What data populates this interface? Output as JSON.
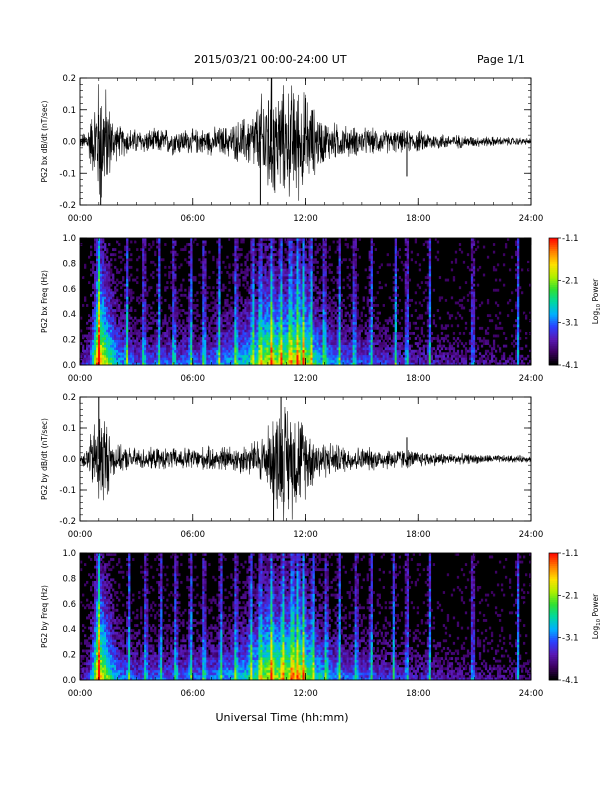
{
  "header": {
    "title": "2015/03/21  00:00-24:00 UT",
    "page": "Page 1/1"
  },
  "footer": {
    "xlabel": "Universal Time (hh:mm)"
  },
  "colors": {
    "trace": "#000000",
    "axis": "#000000",
    "background": "#ffffff",
    "colormap": [
      "#000000",
      "#3c0060",
      "#5a18b4",
      "#2a40ff",
      "#00b0ff",
      "#00d8a0",
      "#30e030",
      "#b0f000",
      "#ffe000",
      "#ff8000",
      "#ff1000"
    ]
  },
  "chart_data": [
    {
      "type": "line",
      "title": "",
      "ylabel": "PG2 bx dB/dt (nT/sec)",
      "xlabel": "",
      "xlim": [
        "00:00",
        "24:00"
      ],
      "ylim": [
        -0.2,
        0.2
      ],
      "xticks": [
        "00:00",
        "06:00",
        "12:00",
        "18:00",
        "24:00"
      ],
      "yticks": [
        "0.2",
        "0.1",
        "0.0",
        "-0.1",
        "-0.2"
      ],
      "envelope": {
        "x_hours": [
          0,
          0.3,
          0.7,
          1.0,
          1.3,
          1.7,
          2.0,
          3.0,
          4.0,
          5.0,
          6.0,
          7.0,
          8.0,
          9.0,
          9.5,
          10.0,
          10.5,
          11.0,
          11.5,
          12.0,
          12.5,
          13.0,
          14.0,
          15.0,
          16.0,
          17.0,
          18.0,
          19.0,
          20.0,
          21.0,
          22.0,
          23.0,
          24.0
        ],
        "amplitude": [
          0.02,
          0.04,
          0.12,
          0.25,
          0.22,
          0.1,
          0.06,
          0.045,
          0.045,
          0.05,
          0.045,
          0.05,
          0.06,
          0.1,
          0.14,
          0.25,
          0.2,
          0.2,
          0.22,
          0.18,
          0.12,
          0.08,
          0.06,
          0.05,
          0.045,
          0.04,
          0.04,
          0.03,
          0.025,
          0.02,
          0.018,
          0.015,
          0.012
        ]
      },
      "spikes": [
        {
          "hour": 1.1,
          "value": -0.22
        },
        {
          "hour": 9.6,
          "value": -0.2
        },
        {
          "hour": 10.2,
          "value": 0.21
        },
        {
          "hour": 17.4,
          "value": -0.11
        }
      ]
    },
    {
      "type": "heatmap",
      "title": "",
      "ylabel": "PG2 bx Freq (Hz)",
      "xlabel": "",
      "xlim": [
        "00:00",
        "24:00"
      ],
      "ylim": [
        0.0,
        1.0
      ],
      "xticks": [
        "00:00",
        "06:00",
        "12:00",
        "18:00",
        "24:00"
      ],
      "yticks": [
        "1.0",
        "0.8",
        "0.6",
        "0.4",
        "0.2",
        "0.0"
      ],
      "colorbar": {
        "label": "Log10 Power",
        "label_prefix": "Log",
        "label_sub": "10",
        "label_suffix": " Power",
        "range": [
          -4.1,
          -1.1
        ],
        "ticks": [
          "-1.1",
          "-2.1",
          "-3.1",
          "-4.1"
        ]
      },
      "activity": {
        "x_hours": [
          0,
          0.5,
          0.8,
          1.0,
          1.3,
          2.0,
          3.0,
          5.0,
          7.0,
          8.5,
          9.5,
          10.0,
          10.5,
          11.0,
          11.5,
          12.0,
          12.5,
          13.0,
          14.0,
          16.0,
          18.0,
          20.0,
          22.0,
          24.0
        ],
        "level": [
          0.15,
          0.3,
          0.7,
          1.0,
          0.8,
          0.45,
          0.3,
          0.32,
          0.35,
          0.45,
          0.6,
          0.8,
          0.7,
          0.7,
          0.8,
          0.7,
          0.55,
          0.45,
          0.35,
          0.28,
          0.22,
          0.18,
          0.15,
          0.1
        ]
      },
      "bright_lines_hours": [
        1.0,
        2.5,
        3.4,
        4.2,
        5.0,
        5.9,
        6.6,
        7.4,
        8.3,
        9.2,
        9.6,
        10.2,
        10.7,
        11.2,
        11.6,
        11.9,
        12.3,
        13.0,
        13.8,
        14.6,
        15.5,
        16.8,
        17.4,
        18.6,
        20.9,
        23.3
      ]
    },
    {
      "type": "line",
      "title": "",
      "ylabel": "PG2 by dB/dt (nT/sec)",
      "xlabel": "",
      "xlim": [
        "00:00",
        "24:00"
      ],
      "ylim": [
        -0.2,
        0.2
      ],
      "xticks": [
        "00:00",
        "06:00",
        "12:00",
        "18:00",
        "24:00"
      ],
      "yticks": [
        "0.2",
        "0.1",
        "0.0",
        "-0.1",
        "-0.2"
      ],
      "envelope": {
        "x_hours": [
          0,
          0.3,
          0.7,
          1.0,
          1.3,
          1.7,
          2.0,
          3.0,
          4.0,
          5.0,
          6.0,
          7.0,
          8.0,
          9.0,
          9.5,
          10.0,
          10.5,
          11.0,
          11.5,
          12.0,
          12.5,
          13.0,
          14.0,
          15.0,
          16.0,
          17.0,
          18.0,
          19.0,
          20.0,
          21.0,
          22.0,
          23.0,
          24.0
        ],
        "amplitude": [
          0.02,
          0.04,
          0.12,
          0.2,
          0.18,
          0.08,
          0.05,
          0.04,
          0.04,
          0.04,
          0.045,
          0.045,
          0.05,
          0.06,
          0.08,
          0.12,
          0.2,
          0.22,
          0.2,
          0.14,
          0.09,
          0.07,
          0.05,
          0.045,
          0.04,
          0.04,
          0.03,
          0.025,
          0.02,
          0.018,
          0.015,
          0.014,
          0.012
        ]
      },
      "spikes": [
        {
          "hour": 1.0,
          "value": 0.22
        },
        {
          "hour": 10.7,
          "value": 0.22
        },
        {
          "hour": 10.3,
          "value": -0.21
        },
        {
          "hour": 17.4,
          "value": 0.07
        }
      ]
    },
    {
      "type": "heatmap",
      "title": "",
      "ylabel": "PG2 by Freq (Hz)",
      "xlabel": "",
      "xlim": [
        "00:00",
        "24:00"
      ],
      "ylim": [
        0.0,
        1.0
      ],
      "xticks": [
        "00:00",
        "06:00",
        "12:00",
        "18:00",
        "24:00"
      ],
      "yticks": [
        "1.0",
        "0.8",
        "0.6",
        "0.4",
        "0.2",
        "0.0"
      ],
      "colorbar": {
        "label": "Log10 Power",
        "label_prefix": "Log",
        "label_sub": "10",
        "label_suffix": " Power",
        "range": [
          -4.1,
          -1.1
        ],
        "ticks": [
          "-1.1",
          "-2.1",
          "-3.1",
          "-4.1"
        ]
      },
      "activity": {
        "x_hours": [
          0,
          0.5,
          0.8,
          1.0,
          1.3,
          2.0,
          3.0,
          5.0,
          7.0,
          8.5,
          9.5,
          10.0,
          10.5,
          11.0,
          11.5,
          12.0,
          12.5,
          13.0,
          14.0,
          16.0,
          18.0,
          20.0,
          22.0,
          24.0
        ],
        "level": [
          0.15,
          0.3,
          0.7,
          0.95,
          0.75,
          0.4,
          0.3,
          0.32,
          0.35,
          0.45,
          0.6,
          0.8,
          0.72,
          0.75,
          0.8,
          0.7,
          0.55,
          0.45,
          0.35,
          0.28,
          0.22,
          0.18,
          0.15,
          0.1
        ]
      },
      "bright_lines_hours": [
        1.0,
        2.6,
        3.5,
        4.3,
        5.1,
        5.9,
        6.6,
        7.5,
        8.3,
        9.1,
        9.6,
        10.2,
        10.8,
        11.3,
        11.6,
        11.9,
        12.4,
        13.1,
        13.8,
        14.7,
        15.5,
        16.7,
        17.4,
        18.6,
        20.9,
        23.3
      ]
    }
  ]
}
